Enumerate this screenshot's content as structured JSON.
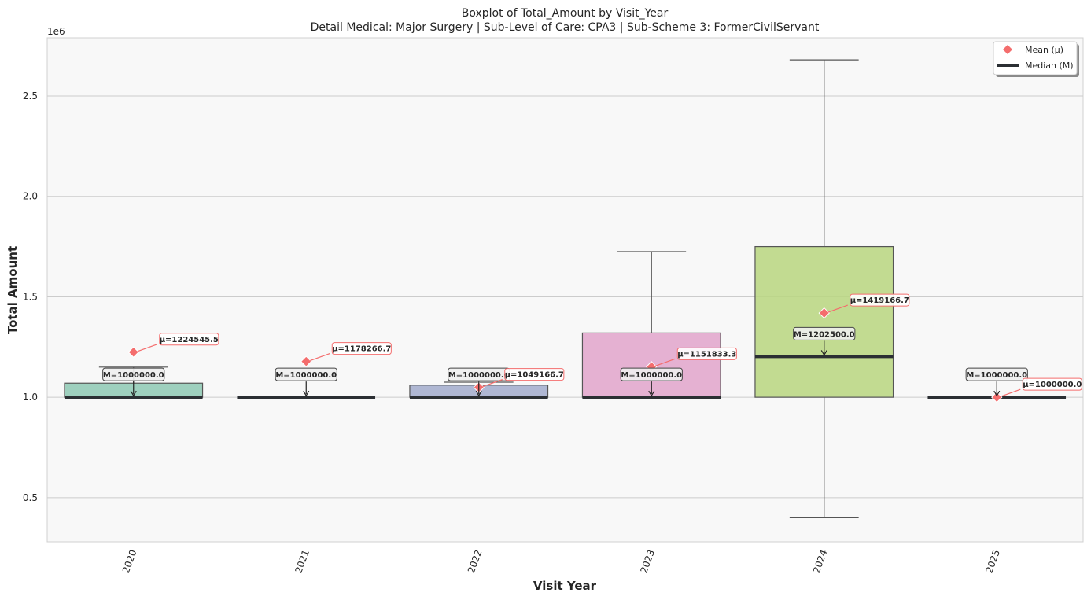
{
  "chart_data": {
    "type": "box",
    "title": "Boxplot of Total_Amount by Visit_Year",
    "subtitle": "Detail Medical: Major Surgery | Sub-Level of Care: CPA3 | Sub-Scheme 3: FormerCivilServant",
    "xlabel": "Visit Year",
    "ylabel": "Total Amount",
    "y_offset_label": "1e6",
    "ylim": [
      0.28,
      2.79
    ],
    "y_ticks": [
      0.5,
      1.0,
      1.5,
      2.0,
      2.5
    ],
    "y_tick_labels": [
      "0.5",
      "1.0",
      "1.5",
      "2.0",
      "2.5"
    ],
    "grid": "horizontal",
    "legend_position": "top-right",
    "legend": [
      {
        "label": "Mean (μ)",
        "marker": "diamond",
        "color": "#f46d6d"
      },
      {
        "label": "Median (M)",
        "marker": "line",
        "color": "#2b2f33"
      }
    ],
    "categories": [
      "2020",
      "2021",
      "2022",
      "2023",
      "2024",
      "2025"
    ],
    "boxes": [
      {
        "year": "2020",
        "whisker_low": 1.0,
        "q1": 1.0,
        "median": 1.0,
        "q3": 1.07,
        "whisker_high": 1.15,
        "mean": 1.2245455,
        "color": "#8ec9b4",
        "mean_label": "μ=1224545.5",
        "median_label": "M=1000000.0"
      },
      {
        "year": "2021",
        "whisker_low": 1.0,
        "q1": 1.0,
        "median": 1.0,
        "q3": 1.0,
        "whisker_high": 1.0,
        "mean": 1.1782667,
        "color": "#f5a77e",
        "mean_label": "μ=1178266.7",
        "median_label": "M=1000000.0"
      },
      {
        "year": "2022",
        "whisker_low": 1.0,
        "q1": 1.0,
        "median": 1.0,
        "q3": 1.06,
        "whisker_high": 1.075,
        "mean": 1.0491667,
        "color": "#a2abcd",
        "mean_label": "μ=1049166.7",
        "median_label": "M=1000000.0"
      },
      {
        "year": "2023",
        "whisker_low": 1.0,
        "q1": 1.0,
        "median": 1.0,
        "q3": 1.32,
        "whisker_high": 1.725,
        "mean": 1.1518333,
        "color": "#e2a5cb",
        "mean_label": "μ=1151833.3",
        "median_label": "M=1000000.0"
      },
      {
        "year": "2024",
        "whisker_low": 0.4,
        "q1": 1.0,
        "median": 1.2025,
        "q3": 1.75,
        "whisker_high": 2.68,
        "mean": 1.4191667,
        "color": "#b9d67f",
        "mean_label": "μ=1419166.7",
        "median_label": "M=1202500.0"
      },
      {
        "year": "2025",
        "whisker_low": 1.0,
        "q1": 1.0,
        "median": 1.0,
        "q3": 1.0,
        "whisker_high": 1.0,
        "mean": 1.0,
        "color": "#f5dc86",
        "mean_label": "μ=1000000.0",
        "median_label": "M=1000000.0"
      }
    ],
    "colors": {
      "mean": "#f46d6d",
      "median": "#2b2f33",
      "whisker": "#555555",
      "plot_bg": "#f8f8f8",
      "grid": "#cccccc"
    }
  }
}
